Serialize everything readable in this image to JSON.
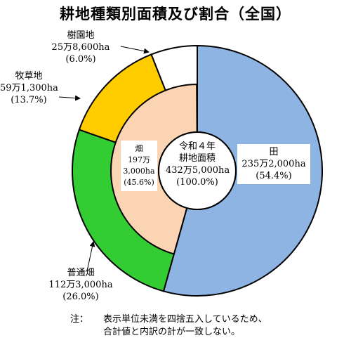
{
  "title": "耕地種類別面積及び割合（全国）",
  "chart_data": {
    "type": "pie",
    "title": "耕地種類別面積及び割合（全国）",
    "center_label": [
      "令和４年",
      "耕地面積",
      "432万5,000ha",
      "(100.0%)"
    ],
    "outer_ring": [
      {
        "name": "田",
        "area": "235万2,000ha",
        "percent_text": "(54.4%)",
        "value": 54.4,
        "color": "#8EB4E3"
      },
      {
        "name": "普通畑",
        "area": "112万3,000ha",
        "percent_text": "(26.0%)",
        "value": 26.0,
        "color": "#33CC33"
      },
      {
        "name": "牧草地",
        "area": "59万1,300ha",
        "percent_text": "(13.7%)",
        "value": 13.7,
        "color": "#FFCC00"
      },
      {
        "name": "樹園地",
        "area": "25万8,600ha",
        "percent_text": "(6.0%)",
        "value": 6.0,
        "color": "#FFFFFF"
      }
    ],
    "inner_ring": [
      {
        "name": "畑",
        "area_line1": "197万",
        "area_line2": "3,000ha",
        "percent_text": "(45.6%)",
        "value": 45.6,
        "color": "#FBD4B4"
      }
    ]
  },
  "note": {
    "prefix": "注：",
    "line1": "表示単位未満を四捨五入しているため、",
    "line2": "合計値と内訳の計が一致しない。"
  }
}
